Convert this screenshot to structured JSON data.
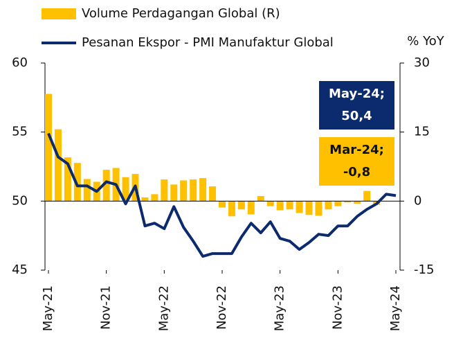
{
  "chart_data": {
    "type": "bar-line",
    "categories": [
      "May-21",
      null,
      null,
      null,
      null,
      null,
      "Nov-21",
      null,
      null,
      null,
      null,
      null,
      "May-22",
      null,
      null,
      null,
      null,
      null,
      "Nov-22",
      null,
      null,
      null,
      null,
      null,
      "May-23",
      null,
      null,
      null,
      null,
      null,
      "Nov-23",
      null,
      null,
      null,
      null,
      null,
      "May-24"
    ],
    "series": [
      {
        "name": "Volume Perdagangan Global (R)",
        "color": "#ffc000",
        "axis": "y2",
        "kind": "bar",
        "values": [
          23.3,
          15.6,
          9.5,
          8.3,
          4.8,
          4.2,
          6.8,
          7.2,
          5.2,
          5.9,
          0.8,
          1.5,
          4.7,
          3.6,
          4.5,
          4.7,
          5.0,
          3.2,
          -1.4,
          -3.3,
          -1.8,
          -2.9,
          1.1,
          -1.1,
          -2.0,
          -1.8,
          -2.6,
          -3.0,
          -3.2,
          -1.8,
          -1.1,
          -0.3,
          -0.6,
          2.2,
          -0.8,
          null,
          null
        ]
      },
      {
        "name": "Pesanan Ekspor - PMI Manufaktur Global",
        "color": "#0c2a6e",
        "kind": "line",
        "values": [
          54.9,
          53.2,
          52.7,
          51.1,
          51.1,
          50.7,
          51.4,
          51.2,
          49.8,
          51.1,
          48.2,
          48.4,
          48.0,
          49.6,
          48.1,
          47.1,
          46.0,
          46.2,
          46.2,
          46.2,
          47.4,
          48.4,
          47.7,
          48.5,
          47.3,
          47.1,
          46.5,
          47.0,
          47.6,
          47.5,
          48.2,
          48.2,
          48.9,
          49.4,
          49.8,
          50.5,
          50.4
        ]
      }
    ],
    "ylim": [
      45,
      60
    ],
    "yticks": [
      45,
      50,
      55,
      60
    ],
    "y2lim": [
      -15,
      30
    ],
    "y2ticks": [
      -15,
      0,
      15,
      30
    ],
    "y2label": "% YoY",
    "annotations": [
      {
        "lines": [
          "May-24;",
          "50,4"
        ],
        "color": "#0c2a6e",
        "text_color": "#ffffff"
      },
      {
        "lines": [
          "Mar-24;",
          "-0,8"
        ],
        "color": "#ffc000",
        "text_color": "#111111"
      }
    ]
  }
}
